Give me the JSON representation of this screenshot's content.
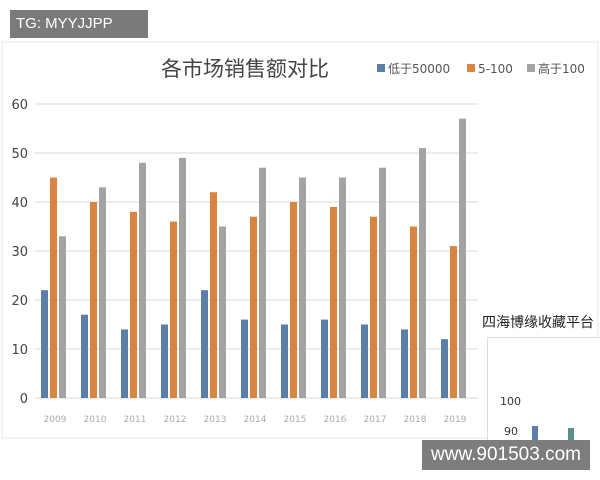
{
  "watermarks": {
    "top_left": "TG: MYYJJPP",
    "bottom_right": "www.901503.com",
    "overlay": "四海博缘收藏平台",
    "inset_ticks": [
      "100",
      "90"
    ]
  },
  "chart_data": {
    "type": "bar",
    "title": "各市场销售额对比",
    "categories": [
      "2009",
      "2010",
      "2011",
      "2012",
      "2013",
      "2014",
      "2015",
      "2016",
      "2017",
      "2018",
      "2019"
    ],
    "series": [
      {
        "name": "低于50000",
        "color": "#5b7fa6",
        "values": [
          22,
          17,
          14,
          15,
          22,
          16,
          15,
          16,
          15,
          14,
          12
        ]
      },
      {
        "name": "5-100",
        "color": "#d9843f",
        "values": [
          45,
          40,
          38,
          36,
          42,
          37,
          40,
          39,
          37,
          35,
          31
        ]
      },
      {
        "name": "高于100",
        "color": "#a3a3a3",
        "values": [
          33,
          43,
          48,
          49,
          35,
          47,
          45,
          45,
          47,
          51,
          57
        ]
      }
    ],
    "ylim": [
      0,
      60
    ],
    "yticks": [
      0,
      10,
      20,
      30,
      40,
      50,
      60
    ],
    "grid": true,
    "legend": "top-right"
  }
}
